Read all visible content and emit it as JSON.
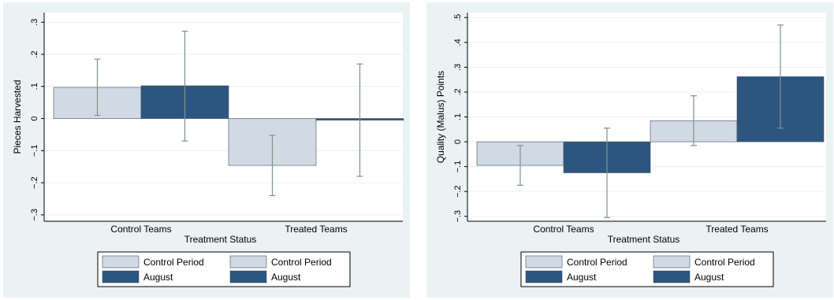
{
  "colors": {
    "panel_bg": "#eaf2f3",
    "plot_bg": "#ffffff",
    "light_bar": "#d1dae4",
    "dark_bar": "#2c5680",
    "error_bar": "#7d9488"
  },
  "chart_data": [
    {
      "type": "bar",
      "ylabel": "Pieces Harvested",
      "xlabel": "Treatment Status",
      "categories": [
        "Control Teams",
        "Treated Teams"
      ],
      "yticks": [
        -0.3,
        -0.2,
        -0.1,
        0,
        0.1,
        0.2,
        0.3
      ],
      "ytick_labels": [
        "−.3",
        "−.2",
        "−.1",
        "0",
        ".1",
        ".2",
        ".3"
      ],
      "ylim": [
        -0.32,
        0.33
      ],
      "grid": true,
      "legend_position": "bottom",
      "legend": [
        "Control Period",
        "Control Period",
        "August",
        "August"
      ],
      "series": [
        {
          "name": "Control Period",
          "values": [
            0.097,
            -0.146
          ],
          "ci_low": [
            0.01,
            -0.24
          ],
          "ci_high": [
            0.185,
            -0.052
          ],
          "color": "#d1dae4"
        },
        {
          "name": "August",
          "values": [
            0.102,
            -0.005
          ],
          "ci_low": [
            -0.07,
            -0.18
          ],
          "ci_high": [
            0.272,
            0.17
          ],
          "color": "#2c5680"
        }
      ]
    },
    {
      "type": "bar",
      "ylabel": "Quality (Malus) Points",
      "xlabel": "Treatment Status",
      "categories": [
        "Control Teams",
        "Treated Teams"
      ],
      "yticks": [
        -0.3,
        -0.2,
        -0.1,
        0,
        0.1,
        0.2,
        0.3,
        0.4,
        0.5
      ],
      "ytick_labels": [
        "−.3",
        "−.2",
        "−.1",
        "0",
        ".1",
        ".2",
        ".3",
        ".4",
        ".5"
      ],
      "ylim": [
        -0.32,
        0.52
      ],
      "grid": true,
      "legend_position": "bottom",
      "legend": [
        "Control Period",
        "Control Period",
        "August",
        "August"
      ],
      "series": [
        {
          "name": "Control Period",
          "values": [
            -0.095,
            0.085
          ],
          "ci_low": [
            -0.175,
            -0.015
          ],
          "ci_high": [
            -0.015,
            0.185
          ],
          "color": "#d1dae4"
        },
        {
          "name": "August",
          "values": [
            -0.125,
            0.262
          ],
          "ci_low": [
            -0.305,
            0.055
          ],
          "ci_high": [
            0.055,
            0.47
          ],
          "color": "#2c5680"
        }
      ]
    }
  ]
}
